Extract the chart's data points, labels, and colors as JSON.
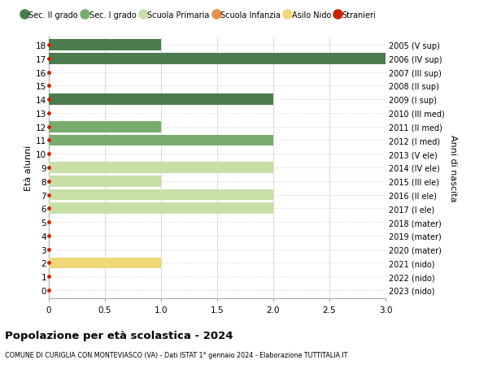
{
  "ages": [
    18,
    17,
    16,
    15,
    14,
    13,
    12,
    11,
    10,
    9,
    8,
    7,
    6,
    5,
    4,
    3,
    2,
    1,
    0
  ],
  "right_labels": [
    "2005 (V sup)",
    "2006 (IV sup)",
    "2007 (III sup)",
    "2008 (II sup)",
    "2009 (I sup)",
    "2010 (III med)",
    "2011 (II med)",
    "2012 (I med)",
    "2013 (V ele)",
    "2014 (IV ele)",
    "2015 (III ele)",
    "2016 (II ele)",
    "2017 (I ele)",
    "2018 (mater)",
    "2019 (mater)",
    "2020 (mater)",
    "2021 (nido)",
    "2022 (nido)",
    "2023 (nido)"
  ],
  "bars": [
    {
      "age": 18,
      "value": 1.0,
      "color": "#4a7c4e"
    },
    {
      "age": 17,
      "value": 3.0,
      "color": "#4a7c4e"
    },
    {
      "age": 16,
      "value": 0,
      "color": "#4a7c4e"
    },
    {
      "age": 15,
      "value": 0,
      "color": "#4a7c4e"
    },
    {
      "age": 14,
      "value": 2.0,
      "color": "#4a7c4e"
    },
    {
      "age": 13,
      "value": 0,
      "color": "#7aab6e"
    },
    {
      "age": 12,
      "value": 1.0,
      "color": "#7aab6e"
    },
    {
      "age": 11,
      "value": 2.0,
      "color": "#7aab6e"
    },
    {
      "age": 10,
      "value": 0,
      "color": "#7aab6e"
    },
    {
      "age": 9,
      "value": 2.0,
      "color": "#c8dfa8"
    },
    {
      "age": 8,
      "value": 1.0,
      "color": "#c8dfa8"
    },
    {
      "age": 7,
      "value": 2.0,
      "color": "#c8dfa8"
    },
    {
      "age": 6,
      "value": 2.0,
      "color": "#c8dfa8"
    },
    {
      "age": 5,
      "value": 0,
      "color": "#e8904a"
    },
    {
      "age": 4,
      "value": 0,
      "color": "#e8904a"
    },
    {
      "age": 3,
      "value": 0,
      "color": "#e8904a"
    },
    {
      "age": 2,
      "value": 1.0,
      "color": "#f0d878"
    },
    {
      "age": 1,
      "value": 0,
      "color": "#f0d878"
    },
    {
      "age": 0,
      "value": 0,
      "color": "#f0d878"
    }
  ],
  "red_dot_color": "#cc2200",
  "legend": [
    {
      "label": "Sec. II grado",
      "color": "#4a7c4e"
    },
    {
      "label": "Sec. I grado",
      "color": "#7aab6e"
    },
    {
      "label": "Scuola Primaria",
      "color": "#c8dfa8"
    },
    {
      "label": "Scuola Infanzia",
      "color": "#e8904a"
    },
    {
      "label": "Asilo Nido",
      "color": "#f0d878"
    },
    {
      "label": "Stranieri",
      "color": "#cc2200"
    }
  ],
  "xlim": [
    0,
    3.0
  ],
  "xticks": [
    0,
    0.5,
    1.0,
    1.5,
    2.0,
    2.5,
    3.0
  ],
  "ylabel_left": "Età alunni",
  "ylabel_right": "Anni di nascita",
  "title": "Popolazione per età scolastica - 2024",
  "subtitle": "COMUNE DI CURIGLIA CON MONTEVIASCO (VA) - Dati ISTAT 1° gennaio 2024 - Elaborazione TUTTITALIA.IT",
  "bg_color": "#ffffff",
  "grid_color_x": "#cccccc",
  "grid_color_y": "#dddddd",
  "bar_height": 0.82
}
